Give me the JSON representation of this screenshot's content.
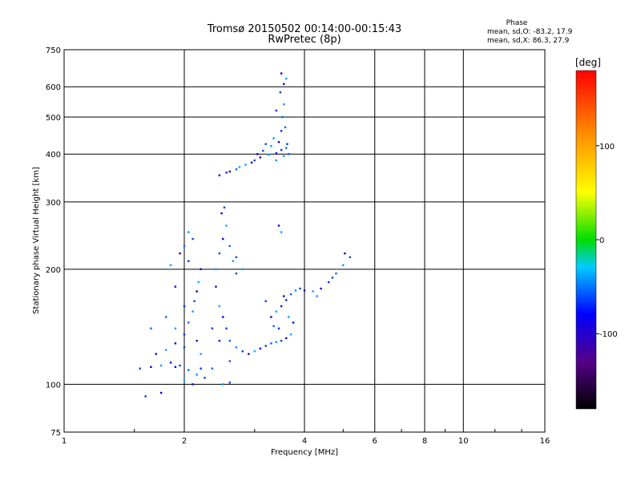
{
  "chart_data": {
    "type": "scatter",
    "title": "Tromsø 20150502 00:14:00-00:15:43",
    "subtitle": "RwPretec (8p)",
    "xlabel": "Frequency [MHz]",
    "ylabel": "Stationary phase Virtual Height [km]",
    "x_scale": "log",
    "y_scale": "log",
    "xlim": [
      1,
      16
    ],
    "ylim": [
      75,
      750
    ],
    "x_ticks": [
      1,
      2,
      4,
      6,
      8,
      10,
      16
    ],
    "y_ticks": [
      75,
      100,
      200,
      300,
      400,
      500,
      600,
      750
    ],
    "grid": true,
    "colorbar": {
      "label": "[deg]",
      "range": [
        -180,
        180
      ],
      "ticks": [
        100,
        0,
        -100
      ]
    },
    "phase_stats": {
      "title": "Phase",
      "line1": "mean, sd,O: -83.2, 17.9",
      "line2": "mean, sd,X:  86.3, 27.9"
    },
    "series": [
      {
        "points": [
          [
            2.45,
            352
          ],
          [
            2.55,
            358
          ],
          [
            2.7,
            365
          ],
          [
            2.85,
            375
          ],
          [
            3.0,
            385
          ],
          [
            3.1,
            392
          ],
          [
            3.25,
            398
          ],
          [
            3.4,
            402
          ],
          [
            3.5,
            410
          ],
          [
            3.6,
            415
          ],
          [
            3.3,
            420
          ],
          [
            3.15,
            408
          ],
          [
            2.95,
            380
          ],
          [
            3.55,
            395
          ],
          [
            3.45,
            430
          ],
          [
            3.5,
            460
          ],
          [
            3.52,
            500
          ],
          [
            3.55,
            540
          ],
          [
            3.48,
            580
          ],
          [
            3.55,
            610
          ],
          [
            3.6,
            630
          ],
          [
            3.5,
            650
          ],
          [
            3.4,
            520
          ],
          [
            3.58,
            470
          ],
          [
            3.35,
            440
          ],
          [
            3.2,
            425
          ],
          [
            3.05,
            400
          ],
          [
            2.75,
            370
          ],
          [
            2.6,
            360
          ],
          [
            3.62,
            425
          ],
          [
            3.65,
            400
          ],
          [
            3.4,
            385
          ],
          [
            1.55,
            110
          ],
          [
            1.65,
            111
          ],
          [
            1.75,
            112
          ],
          [
            1.85,
            114
          ],
          [
            1.95,
            112
          ],
          [
            2.05,
            109
          ],
          [
            2.15,
            106
          ],
          [
            2.25,
            104
          ],
          [
            2.1,
            100
          ],
          [
            2.0,
            102
          ],
          [
            1.9,
            111
          ],
          [
            2.2,
            110
          ],
          [
            2.35,
            110
          ],
          [
            2.5,
            100
          ],
          [
            2.6,
            101
          ],
          [
            1.7,
            120
          ],
          [
            1.8,
            123
          ],
          [
            1.9,
            128
          ],
          [
            2.0,
            135
          ],
          [
            2.05,
            145
          ],
          [
            2.1,
            155
          ],
          [
            2.12,
            165
          ],
          [
            2.15,
            175
          ],
          [
            2.17,
            185
          ],
          [
            2.2,
            200
          ],
          [
            2.05,
            210
          ],
          [
            2.0,
            230
          ],
          [
            2.05,
            250
          ],
          [
            2.1,
            240
          ],
          [
            1.95,
            220
          ],
          [
            1.85,
            205
          ],
          [
            1.9,
            180
          ],
          [
            2.0,
            160
          ],
          [
            1.8,
            150
          ],
          [
            1.9,
            140
          ],
          [
            2.0,
            125
          ],
          [
            2.15,
            130
          ],
          [
            2.2,
            120
          ],
          [
            1.75,
            95
          ],
          [
            1.6,
            93
          ],
          [
            1.65,
            140
          ],
          [
            2.4,
            200
          ],
          [
            2.45,
            220
          ],
          [
            2.5,
            240
          ],
          [
            2.55,
            260
          ],
          [
            2.48,
            280
          ],
          [
            2.52,
            290
          ],
          [
            2.6,
            230
          ],
          [
            2.65,
            210
          ],
          [
            2.7,
            195
          ],
          [
            2.4,
            180
          ],
          [
            2.45,
            160
          ],
          [
            2.5,
            150
          ],
          [
            2.55,
            140
          ],
          [
            2.6,
            130
          ],
          [
            2.7,
            125
          ],
          [
            2.8,
            122
          ],
          [
            2.9,
            120
          ],
          [
            3.0,
            122
          ],
          [
            3.1,
            124
          ],
          [
            3.2,
            126
          ],
          [
            3.3,
            128
          ],
          [
            3.4,
            129
          ],
          [
            3.5,
            130
          ],
          [
            3.6,
            132
          ],
          [
            3.7,
            135
          ],
          [
            2.45,
            130
          ],
          [
            2.35,
            140
          ],
          [
            2.6,
            115
          ],
          [
            2.8,
            200
          ],
          [
            2.7,
            215
          ],
          [
            3.3,
            150
          ],
          [
            3.4,
            155
          ],
          [
            3.5,
            160
          ],
          [
            3.6,
            166
          ],
          [
            3.7,
            172
          ],
          [
            3.8,
            176
          ],
          [
            3.9,
            178
          ],
          [
            4.0,
            176
          ],
          [
            4.2,
            175
          ],
          [
            4.4,
            178
          ],
          [
            4.6,
            185
          ],
          [
            4.8,
            195
          ],
          [
            5.0,
            205
          ],
          [
            5.2,
            215
          ],
          [
            3.55,
            170
          ],
          [
            3.65,
            150
          ],
          [
            3.75,
            145
          ],
          [
            3.45,
            140
          ],
          [
            3.35,
            142
          ],
          [
            4.3,
            170
          ],
          [
            4.7,
            190
          ],
          [
            5.05,
            220
          ],
          [
            3.5,
            250
          ],
          [
            3.45,
            260
          ],
          [
            3.2,
            165
          ]
        ]
      }
    ]
  }
}
